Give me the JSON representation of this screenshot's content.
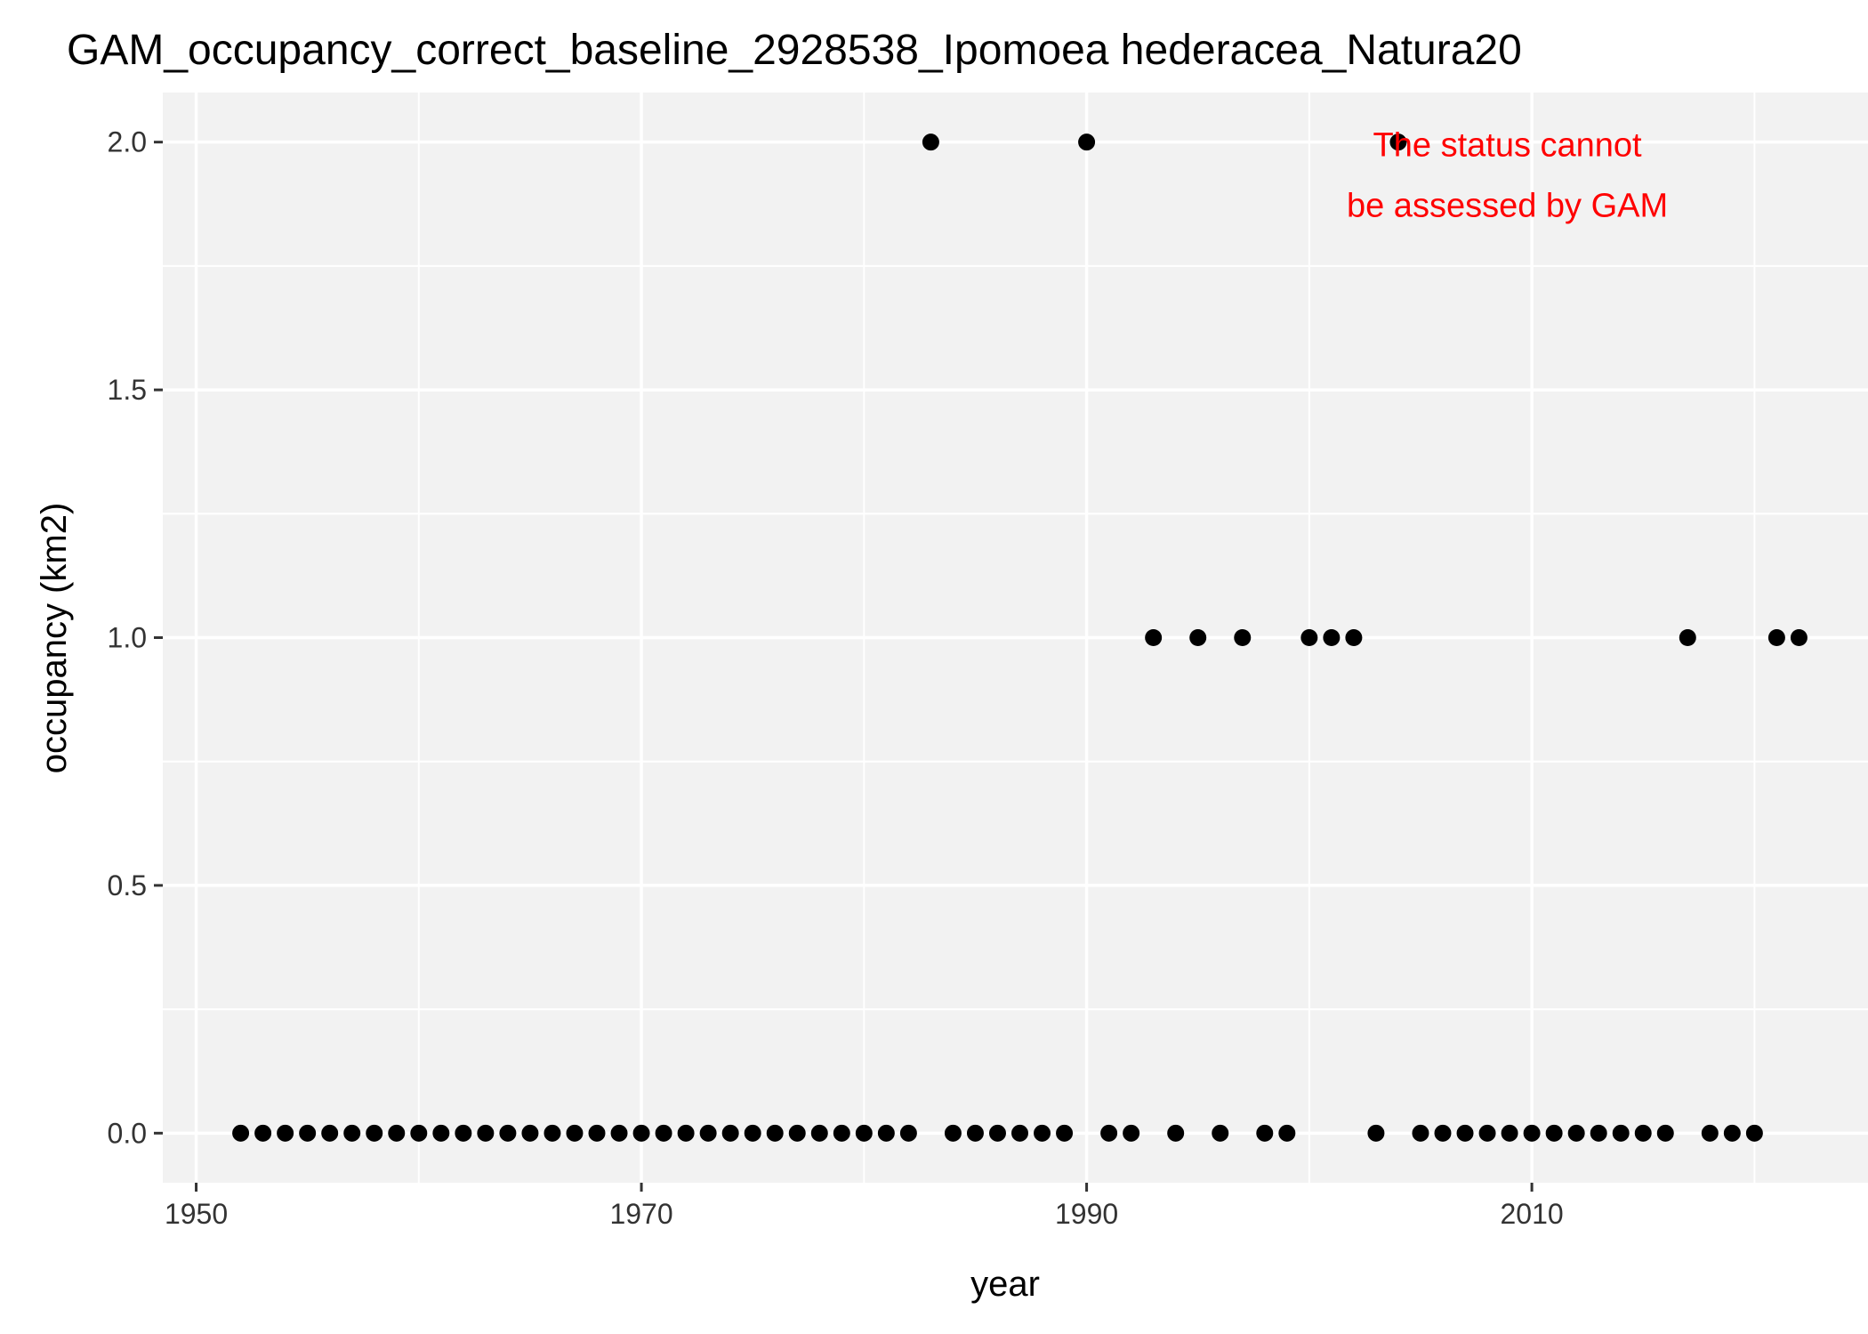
{
  "chart_data": {
    "type": "scatter",
    "title": "GAM_occupancy_correct_baseline_2928538_Ipomoea hederacea_Natura20",
    "xlabel": "year",
    "ylabel": "occupancy (km2)",
    "xlim": [
      1948.5,
      2025.1
    ],
    "ylim": [
      -0.1,
      2.1
    ],
    "x_ticks": [
      1950,
      1970,
      1990,
      2010
    ],
    "y_ticks": [
      0.0,
      0.5,
      1.0,
      1.5,
      2.0
    ],
    "y_tick_labels": [
      "0.0",
      "0.5",
      "1.0",
      "1.5",
      "2.0"
    ],
    "grid": true,
    "background": "#f2f2f2",
    "grid_color": "#ffffff",
    "point_color": "#000000",
    "annotation": {
      "lines": [
        "The status cannot",
        "be assessed by GAM"
      ],
      "color": "#ff0000",
      "x": 2008.9,
      "y": 1.86
    },
    "points": {
      "x": [
        1952,
        1953,
        1954,
        1955,
        1956,
        1957,
        1958,
        1959,
        1960,
        1961,
        1962,
        1963,
        1964,
        1965,
        1966,
        1967,
        1968,
        1969,
        1970,
        1971,
        1972,
        1973,
        1974,
        1975,
        1976,
        1977,
        1978,
        1979,
        1980,
        1981,
        1982,
        1983,
        1984,
        1985,
        1986,
        1987,
        1988,
        1989,
        1990,
        1991,
        1992,
        1993,
        1994,
        1995,
        1996,
        1997,
        1998,
        1999,
        2000,
        2001,
        2002,
        2003,
        2004,
        2005,
        2006,
        2007,
        2008,
        2009,
        2010,
        2011,
        2012,
        2013,
        2014,
        2015,
        2016,
        2017,
        2018,
        2019,
        2020,
        2021,
        2022
      ],
      "y": [
        0,
        0,
        0,
        0,
        0,
        0,
        0,
        0,
        0,
        0,
        0,
        0,
        0,
        0,
        0,
        0,
        0,
        0,
        0,
        0,
        0,
        0,
        0,
        0,
        0,
        0,
        0,
        0,
        0,
        0,
        0,
        2,
        0,
        0,
        0,
        0,
        0,
        0,
        2,
        0,
        0,
        1,
        0,
        1,
        0,
        1,
        0,
        0,
        1,
        1,
        1,
        0,
        2,
        0,
        0,
        0,
        0,
        0,
        0,
        0,
        0,
        0,
        0,
        0,
        0,
        1,
        0,
        0,
        0,
        1,
        1
      ]
    }
  }
}
